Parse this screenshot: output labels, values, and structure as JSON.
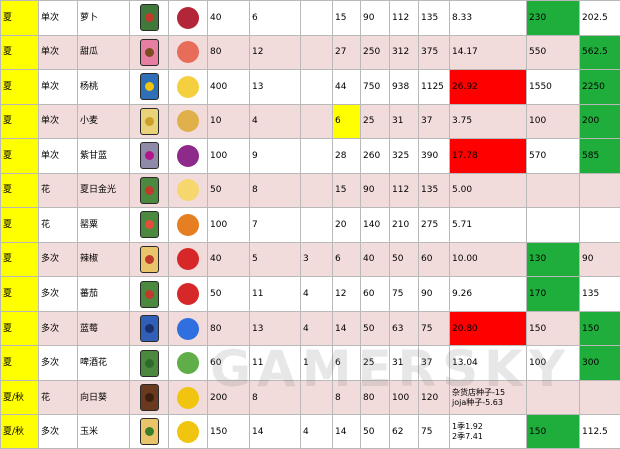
{
  "watermark": "GAMERSKY",
  "colors": {
    "season": "#ffff00",
    "red": "#ff0000",
    "green": "#1fae3c",
    "row_alt": "#f2dcdb"
  },
  "rows": [
    {
      "season": "夏",
      "type": "单次",
      "name": "萝卜",
      "seed_icon": "radish-seed-packet-icon",
      "crop_icon": "radish-icon",
      "seed_color": "#3f7a3a",
      "dot_color": "#c0392b",
      "crop_color": "#b3263a",
      "c1": "40",
      "c2": "6",
      "c3": "",
      "c4": "15",
      "c5": "90",
      "c6": "112",
      "c7": "135",
      "c8": "8.33",
      "c9": "230",
      "c10": "202.5",
      "hl": {
        "c9": "g"
      }
    },
    {
      "season": "夏",
      "type": "单次",
      "name": "甜瓜",
      "seed_icon": "melon-seed-packet-icon",
      "crop_icon": "melon-icon",
      "seed_color": "#e77fa2",
      "dot_color": "#7a4d1e",
      "crop_color": "#e86c5a",
      "c1": "80",
      "c2": "12",
      "c3": "",
      "c4": "27",
      "c5": "250",
      "c6": "312",
      "c7": "375",
      "c8": "14.17",
      "c9": "550",
      "c10": "562.5",
      "hl": {
        "c10": "g"
      }
    },
    {
      "season": "夏",
      "type": "单次",
      "name": "杨桃",
      "seed_icon": "starfruit-seed-packet-icon",
      "crop_icon": "starfruit-icon",
      "seed_color": "#2f6fb7",
      "dot_color": "#f1c40f",
      "crop_color": "#f4d03f",
      "c1": "400",
      "c2": "13",
      "c3": "",
      "c4": "44",
      "c5": "750",
      "c6": "938",
      "c7": "1125",
      "c8": "26.92",
      "c9": "1550",
      "c10": "2250",
      "hl": {
        "c8": "r",
        "c10": "g"
      }
    },
    {
      "season": "夏",
      "type": "单次",
      "name": "小麦",
      "seed_icon": "wheat-seed-packet-icon",
      "crop_icon": "wheat-icon",
      "seed_color": "#e9d27a",
      "dot_color": "#c9a227",
      "crop_color": "#e0b04a",
      "c1": "10",
      "c2": "4",
      "c3": "",
      "c4": "6",
      "c5": "25",
      "c6": "31",
      "c7": "37",
      "c8": "3.75",
      "c9": "100",
      "c10": "200",
      "hl": {
        "c4": "y",
        "c10": "g"
      }
    },
    {
      "season": "夏",
      "type": "单次",
      "name": "紫甘蓝",
      "seed_icon": "red-cabbage-seed-packet-icon",
      "crop_icon": "red-cabbage-icon",
      "seed_color": "#8e8aa8",
      "dot_color": "#b0168a",
      "crop_color": "#8e2a8a",
      "c1": "100",
      "c2": "9",
      "c3": "",
      "c4": "28",
      "c5": "260",
      "c6": "325",
      "c7": "390",
      "c8": "17.78",
      "c9": "570",
      "c10": "585",
      "hl": {
        "c8": "r",
        "c10": "g"
      }
    },
    {
      "season": "夏",
      "type": "花",
      "name": "夏日金光",
      "seed_icon": "summer-spangle-seed-packet-icon",
      "crop_icon": "summer-spangle-icon",
      "seed_color": "#4b8a3e",
      "dot_color": "#c0392b",
      "crop_color": "#f5d76e",
      "c1": "50",
      "c2": "8",
      "c3": "",
      "c4": "15",
      "c5": "90",
      "c6": "112",
      "c7": "135",
      "c8": "5.00",
      "c9": "",
      "c10": "",
      "hl": {}
    },
    {
      "season": "夏",
      "type": "花",
      "name": "罂粟",
      "seed_icon": "poppy-seed-packet-icon",
      "crop_icon": "poppy-icon",
      "seed_color": "#4b8a3e",
      "dot_color": "#e74c3c",
      "crop_color": "#e67e22",
      "c1": "100",
      "c2": "7",
      "c3": "",
      "c4": "20",
      "c5": "140",
      "c6": "210",
      "c7": "275",
      "c8": "5.71",
      "c9": "",
      "c10": "",
      "hl": {}
    },
    {
      "season": "夏",
      "type": "多次",
      "name": "辣椒",
      "seed_icon": "hot-pepper-seed-packet-icon",
      "crop_icon": "hot-pepper-icon",
      "seed_color": "#e9c46a",
      "dot_color": "#c0392b",
      "crop_color": "#d62828",
      "c1": "40",
      "c2": "5",
      "c3": "3",
      "c4": "6",
      "c5": "40",
      "c6": "50",
      "c7": "60",
      "c8": "10.00",
      "c9": "130",
      "c10": "90",
      "hl": {
        "c9": "g"
      }
    },
    {
      "season": "夏",
      "type": "多次",
      "name": "蕃茄",
      "seed_icon": "tomato-seed-packet-icon",
      "crop_icon": "tomato-icon",
      "seed_color": "#4b8a3e",
      "dot_color": "#c0392b",
      "crop_color": "#d62828",
      "c1": "50",
      "c2": "11",
      "c3": "4",
      "c4": "12",
      "c5": "60",
      "c6": "75",
      "c7": "90",
      "c8": "9.26",
      "c9": "170",
      "c10": "135",
      "hl": {
        "c9": "g"
      }
    },
    {
      "season": "夏",
      "type": "多次",
      "name": "蓝莓",
      "seed_icon": "blueberry-seed-packet-icon",
      "crop_icon": "blueberry-icon",
      "seed_color": "#2f5fb7",
      "dot_color": "#1b2f6b",
      "crop_color": "#2f6fe0",
      "c1": "80",
      "c2": "13",
      "c3": "4",
      "c4": "14",
      "c5": "50",
      "c6": "63",
      "c7": "75",
      "c8": "20.80",
      "c9": "150",
      "c10": "150",
      "hl": {
        "c8": "r",
        "c10": "g"
      }
    },
    {
      "season": "夏",
      "type": "多次",
      "name": "啤酒花",
      "seed_icon": "hops-seed-packet-icon",
      "crop_icon": "hops-icon",
      "seed_color": "#4b8a3e",
      "dot_color": "#2e6b2a",
      "crop_color": "#5fae4a",
      "c1": "60",
      "c2": "11",
      "c3": "1",
      "c4": "6",
      "c5": "25",
      "c6": "31",
      "c7": "37",
      "c8": "13.04",
      "c9": "100",
      "c10": "300",
      "hl": {
        "c10": "g"
      }
    },
    {
      "season": "夏/秋",
      "type": "花",
      "name": "向日葵",
      "seed_icon": "sunflower-seeds-icon",
      "crop_icon": "sunflower-icon",
      "seed_color": "#6b3a1e",
      "dot_color": "#3a1e0e",
      "crop_color": "#f1c40f",
      "c1": "200",
      "c2": "8",
      "c3": "",
      "c4": "8",
      "c5": "80",
      "c6": "100",
      "c7": "120",
      "c8": "杂货店种子-15\njoja种子-5.63",
      "c9": "",
      "c10": "",
      "hl": {}
    },
    {
      "season": "夏/秋",
      "type": "多次",
      "name": "玉米",
      "seed_icon": "corn-seed-packet-icon",
      "crop_icon": "corn-icon",
      "seed_color": "#e9c46a",
      "dot_color": "#3a7d2a",
      "crop_color": "#f1c40f",
      "c1": "150",
      "c2": "14",
      "c3": "4",
      "c4": "14",
      "c5": "50",
      "c6": "62",
      "c7": "75",
      "c8": "1季1.92\n2季7.41",
      "c9": "150",
      "c10": "112.5",
      "hl": {
        "c9": "g"
      }
    }
  ]
}
